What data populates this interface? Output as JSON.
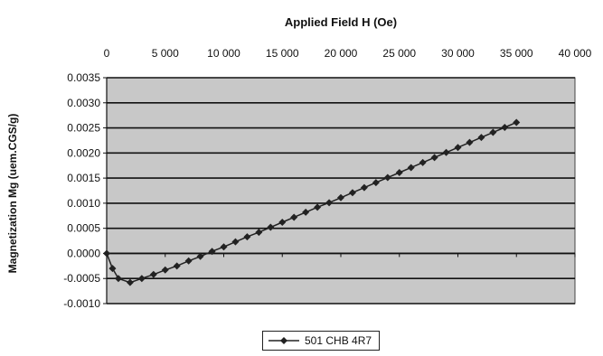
{
  "chart_data": {
    "type": "line",
    "xlabel": "Applied Field H (Oe)",
    "ylabel": "Magnetization Mg (uem.CGS/g)",
    "x_axis_position": "top",
    "xlim": [
      0,
      40000
    ],
    "ylim": [
      -0.001,
      0.0035
    ],
    "x_ticks": [
      0,
      5000,
      10000,
      15000,
      20000,
      25000,
      30000,
      35000,
      40000
    ],
    "x_tick_labels": [
      "0",
      "5 000",
      "10 000",
      "15 000",
      "20 000",
      "25 000",
      "30 000",
      "35 000",
      "40 000"
    ],
    "y_ticks": [
      -0.001,
      -0.0005,
      0,
      0.0005,
      0.001,
      0.0015,
      0.002,
      0.0025,
      0.003,
      0.0035
    ],
    "y_tick_labels": [
      "-0.0010",
      "-0.0005",
      "0.0000",
      "0.0005",
      "0.0010",
      "0.0015",
      "0.0020",
      "0.0025",
      "0.0030",
      "0.0035"
    ],
    "grid": "horizontal",
    "plot_background": "#c8c8c8",
    "series_color": "#222222",
    "legend_position": "bottom",
    "series": [
      {
        "name": "501 CHB 4R7",
        "x": [
          0,
          500,
          1000,
          2000,
          3000,
          4000,
          5000,
          6000,
          7000,
          8000,
          9000,
          10000,
          11000,
          12000,
          13000,
          14000,
          15000,
          16000,
          17000,
          18000,
          19000,
          20000,
          21000,
          22000,
          23000,
          24000,
          25000,
          26000,
          27000,
          28000,
          29000,
          30000,
          31000,
          32000,
          33000,
          34000,
          35000
        ],
        "y": [
          0.0,
          -0.0003,
          -0.0005,
          -0.00058,
          -0.0005,
          -0.00042,
          -0.00033,
          -0.00025,
          -0.00015,
          -6e-05,
          4e-05,
          0.00013,
          0.00023,
          0.00033,
          0.00042,
          0.00052,
          0.00062,
          0.00072,
          0.00082,
          0.00092,
          0.00101,
          0.00111,
          0.00121,
          0.00131,
          0.00141,
          0.00151,
          0.00161,
          0.00171,
          0.00181,
          0.00191,
          0.00201,
          0.00211,
          0.00221,
          0.00231,
          0.00241,
          0.00251,
          0.00261
        ]
      }
    ]
  }
}
